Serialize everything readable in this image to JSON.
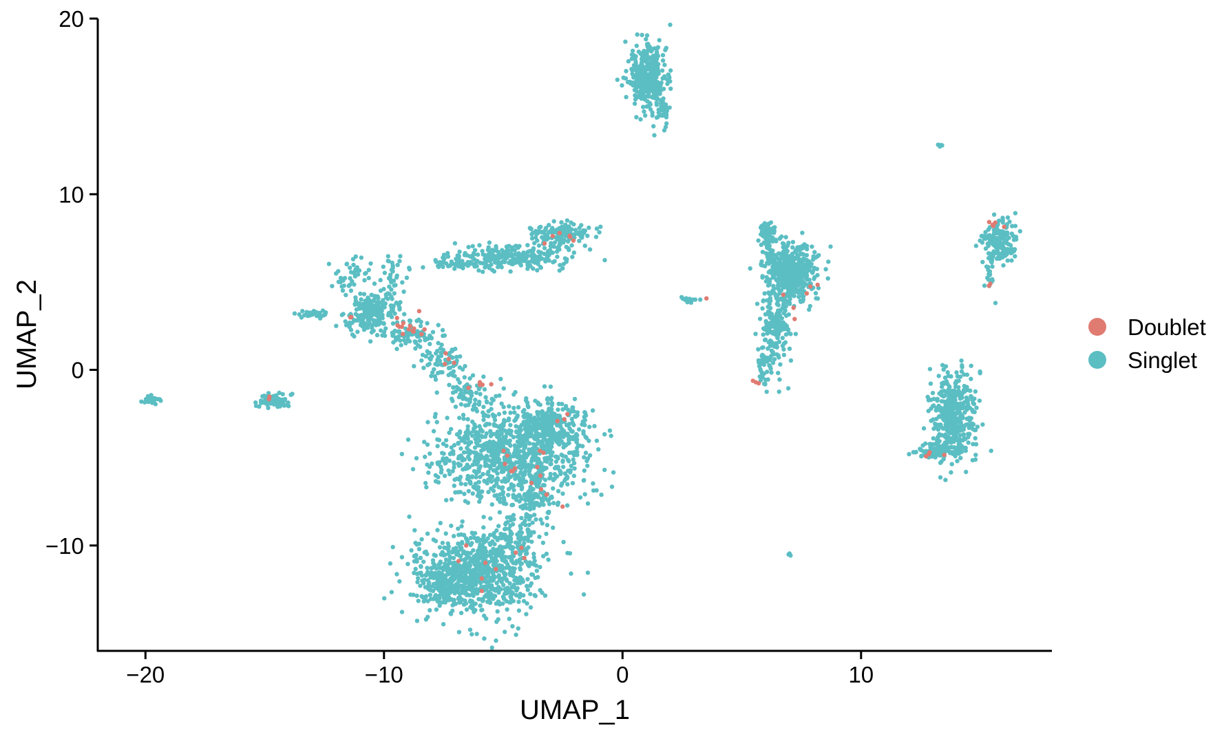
{
  "chart_data": {
    "type": "scatter",
    "title": "",
    "xlabel": "UMAP_1",
    "ylabel": "UMAP_2",
    "xlim": [
      -22,
      18
    ],
    "ylim": [
      -16,
      20
    ],
    "xticks": [
      -20,
      -10,
      0,
      10
    ],
    "yticks": [
      -10,
      0,
      10,
      20
    ],
    "xtick_labels": [
      "−20",
      "−10",
      "0",
      "10"
    ],
    "ytick_labels": [
      "−10",
      "0",
      "10",
      "20"
    ],
    "grid": false,
    "legend_position": "right",
    "series": [
      {
        "name": "Doublet",
        "color": "#E07B72"
      },
      {
        "name": "Singlet",
        "color": "#5BBEC3"
      }
    ],
    "clusters": [
      {
        "series": "Singlet",
        "cx": 1.1,
        "cy": 16.6,
        "sx": 0.38,
        "sy": 0.9,
        "n": 420
      },
      {
        "series": "Singlet",
        "cx": 1.7,
        "cy": 14.5,
        "sx": 0.12,
        "sy": 0.5,
        "n": 25
      },
      {
        "series": "Singlet",
        "cx": 13.3,
        "cy": 12.8,
        "sx": 0.06,
        "sy": 0.05,
        "n": 5
      },
      {
        "series": "Singlet",
        "cx": 7.0,
        "cy": 5.5,
        "sx": 0.55,
        "sy": 0.8,
        "n": 520
      },
      {
        "series": "Singlet",
        "cx": 6.1,
        "cy": 7.6,
        "sx": 0.2,
        "sy": 0.4,
        "n": 60
      },
      {
        "series": "Singlet",
        "cx": 6.4,
        "cy": 2.5,
        "sx": 0.3,
        "sy": 1.1,
        "n": 160
      },
      {
        "series": "Singlet",
        "cx": 6.0,
        "cy": 0.2,
        "sx": 0.2,
        "sy": 0.6,
        "n": 40
      },
      {
        "series": "Singlet",
        "cx": 15.8,
        "cy": 7.3,
        "sx": 0.32,
        "sy": 0.65,
        "n": 170
      },
      {
        "series": "Singlet",
        "cx": 15.4,
        "cy": 5.3,
        "sx": 0.1,
        "sy": 0.5,
        "n": 20
      },
      {
        "series": "Singlet",
        "cx": 13.9,
        "cy": -2.6,
        "sx": 0.45,
        "sy": 1.3,
        "n": 430
      },
      {
        "series": "Singlet",
        "cx": 13.1,
        "cy": -4.6,
        "sx": 0.45,
        "sy": 0.2,
        "n": 80
      },
      {
        "series": "Singlet",
        "cx": 7.0,
        "cy": -10.5,
        "sx": 0.05,
        "sy": 0.05,
        "n": 3
      },
      {
        "series": "Singlet",
        "cx": 2.8,
        "cy": 4.0,
        "sx": 0.18,
        "sy": 0.1,
        "n": 12
      },
      {
        "series": "Singlet",
        "cx": -4.5,
        "cy": 6.4,
        "sx": 1.3,
        "sy": 0.35,
        "n": 260
      },
      {
        "series": "Singlet",
        "cx": -2.6,
        "cy": 7.7,
        "sx": 0.6,
        "sy": 0.3,
        "n": 140
      },
      {
        "series": "Singlet",
        "cx": -6.8,
        "cy": 6.0,
        "sx": 0.4,
        "sy": 0.15,
        "n": 40
      },
      {
        "series": "Singlet",
        "cx": -10.6,
        "cy": 3.3,
        "sx": 0.45,
        "sy": 0.55,
        "n": 200
      },
      {
        "series": "Singlet",
        "cx": -11.2,
        "cy": 5.3,
        "sx": 0.4,
        "sy": 0.5,
        "n": 40
      },
      {
        "series": "Singlet",
        "cx": -9.6,
        "cy": 4.8,
        "sx": 0.35,
        "sy": 1.0,
        "n": 50
      },
      {
        "series": "Singlet",
        "cx": -8.8,
        "cy": 2.0,
        "sx": 0.5,
        "sy": 0.4,
        "n": 90
      },
      {
        "series": "Singlet",
        "cx": -7.5,
        "cy": 0.5,
        "sx": 0.5,
        "sy": 0.5,
        "n": 70
      },
      {
        "series": "Singlet",
        "cx": -6.5,
        "cy": -1.3,
        "sx": 0.5,
        "sy": 0.4,
        "n": 60
      },
      {
        "series": "Singlet",
        "cx": -12.9,
        "cy": 3.2,
        "sx": 0.35,
        "sy": 0.12,
        "n": 30
      },
      {
        "series": "Singlet",
        "cx": -14.5,
        "cy": -1.8,
        "sx": 0.35,
        "sy": 0.2,
        "n": 80
      },
      {
        "series": "Singlet",
        "cx": -19.7,
        "cy": -1.7,
        "sx": 0.2,
        "sy": 0.15,
        "n": 25
      },
      {
        "series": "Singlet",
        "cx": -4.8,
        "cy": -4.8,
        "sx": 1.6,
        "sy": 1.3,
        "n": 850
      },
      {
        "series": "Singlet",
        "cx": -3.1,
        "cy": -3.0,
        "sx": 0.8,
        "sy": 0.7,
        "n": 250
      },
      {
        "series": "Singlet",
        "cx": -3.8,
        "cy": -7.4,
        "sx": 0.5,
        "sy": 0.5,
        "n": 90
      },
      {
        "series": "Singlet",
        "cx": -6.2,
        "cy": -11.6,
        "sx": 1.3,
        "sy": 1.2,
        "n": 800
      },
      {
        "series": "Singlet",
        "cx": -4.2,
        "cy": -9.6,
        "sx": 0.5,
        "sy": 0.7,
        "n": 90
      },
      {
        "series": "Singlet",
        "cx": -7.3,
        "cy": -12.3,
        "sx": 0.6,
        "sy": 0.4,
        "n": 120
      },
      {
        "series": "Doublet",
        "cx": -8.9,
        "cy": 2.3,
        "sx": 0.4,
        "sy": 0.3,
        "n": 14
      },
      {
        "series": "Doublet",
        "cx": -7.4,
        "cy": 0.6,
        "sx": 0.3,
        "sy": 0.3,
        "n": 4
      },
      {
        "series": "Doublet",
        "cx": -6.0,
        "cy": -0.8,
        "sx": 0.25,
        "sy": 0.15,
        "n": 5
      },
      {
        "series": "Doublet",
        "cx": -11.5,
        "cy": 3.0,
        "sx": 0.1,
        "sy": 0.1,
        "n": 2
      },
      {
        "series": "Doublet",
        "cx": -4.2,
        "cy": -5.5,
        "sx": 0.8,
        "sy": 1.0,
        "n": 10
      },
      {
        "series": "Doublet",
        "cx": -3.2,
        "cy": -7.0,
        "sx": 0.5,
        "sy": 0.4,
        "n": 5
      },
      {
        "series": "Doublet",
        "cx": -2.5,
        "cy": -2.8,
        "sx": 0.3,
        "sy": 0.4,
        "n": 3
      },
      {
        "series": "Doublet",
        "cx": -6.3,
        "cy": -11.8,
        "sx": 0.8,
        "sy": 0.9,
        "n": 6
      },
      {
        "series": "Doublet",
        "cx": -4.2,
        "cy": -10.5,
        "sx": 0.2,
        "sy": 0.2,
        "n": 3
      },
      {
        "series": "Doublet",
        "cx": -14.7,
        "cy": -1.5,
        "sx": 0.15,
        "sy": 0.1,
        "n": 2
      },
      {
        "series": "Doublet",
        "cx": -2.6,
        "cy": 7.5,
        "sx": 0.4,
        "sy": 0.2,
        "n": 6
      },
      {
        "series": "Doublet",
        "cx": 3.5,
        "cy": 4.1,
        "sx": 0.05,
        "sy": 0.05,
        "n": 1
      },
      {
        "series": "Doublet",
        "cx": 7.5,
        "cy": 4.5,
        "sx": 0.6,
        "sy": 0.7,
        "n": 6
      },
      {
        "series": "Doublet",
        "cx": 5.5,
        "cy": -0.7,
        "sx": 0.1,
        "sy": 0.1,
        "n": 3
      },
      {
        "series": "Doublet",
        "cx": 15.7,
        "cy": 8.3,
        "sx": 0.2,
        "sy": 0.2,
        "n": 5
      },
      {
        "series": "Doublet",
        "cx": 15.4,
        "cy": 5.0,
        "sx": 0.05,
        "sy": 0.1,
        "n": 2
      },
      {
        "series": "Doublet",
        "cx": 13.2,
        "cy": -4.8,
        "sx": 0.4,
        "sy": 0.1,
        "n": 4
      }
    ]
  }
}
